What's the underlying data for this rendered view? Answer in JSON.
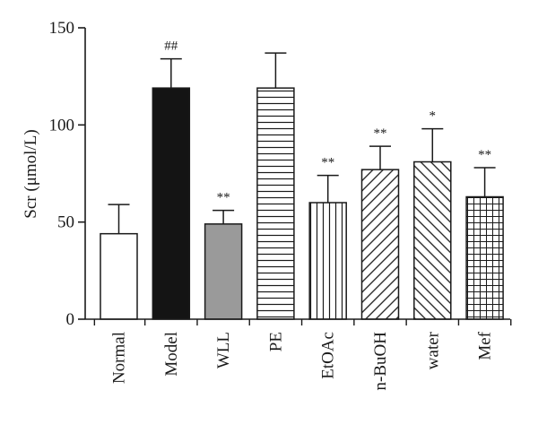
{
  "chart_data": {
    "type": "bar",
    "title": "",
    "xlabel": "",
    "ylabel": "Scr (μmol/L)",
    "ylim": [
      0,
      150
    ],
    "yticks": [
      0,
      50,
      100,
      150
    ],
    "grid": false,
    "categories": [
      "Normal",
      "Model",
      "WLL",
      "PE",
      "EtOAc",
      "n-BuOH",
      "water",
      "Mef"
    ],
    "values": [
      44,
      119,
      49,
      119,
      60,
      77,
      81,
      63
    ],
    "errors": [
      15,
      15,
      7,
      18,
      14,
      12,
      17,
      15
    ],
    "significance": [
      "",
      "##",
      "**",
      "",
      "**",
      "**",
      "*",
      "**"
    ],
    "fills": [
      "white",
      "black",
      "gray",
      "horizontal-lines",
      "vertical-lines",
      "diagonal-forward",
      "diagonal-back",
      "grid"
    ]
  },
  "colors": {
    "axis": "#1a1a1a",
    "black_bar": "#141414",
    "gray_bar": "#9a9a9a",
    "white_bar": "#ffffff"
  }
}
